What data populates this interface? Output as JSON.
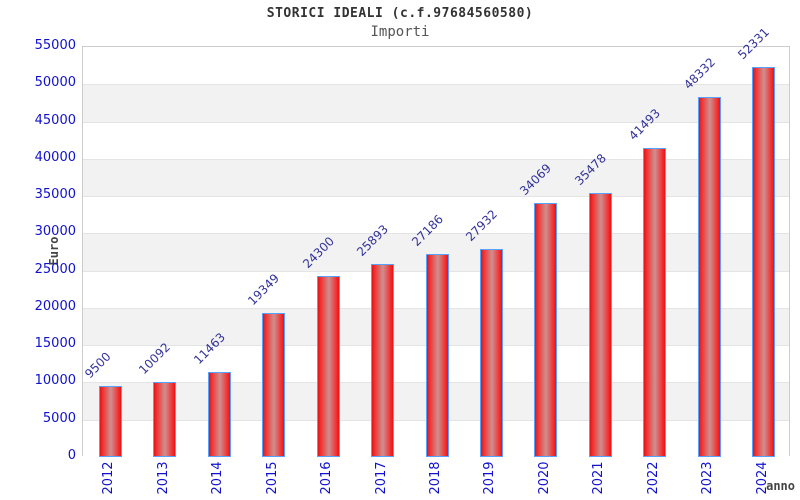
{
  "chart_data": {
    "type": "bar",
    "title": "STORICI IDEALI (c.f.97684560580)",
    "subtitle": "Importi",
    "xlabel": "anno",
    "ylabel": "Euro",
    "categories": [
      "2012",
      "2013",
      "2014",
      "2015",
      "2016",
      "2017",
      "2018",
      "2019",
      "2020",
      "2021",
      "2022",
      "2023",
      "2024"
    ],
    "values": [
      9500,
      10092,
      11463,
      19349,
      24300,
      25893,
      27186,
      27932,
      34069,
      35478,
      41493,
      48332,
      52331
    ],
    "value_labels": [
      "9500",
      "10092",
      "11463",
      "19349",
      "24300",
      "25893",
      "27186",
      "27932",
      "34069",
      "35478",
      "41493",
      "48332",
      "52331"
    ],
    "ylim": [
      0,
      55000
    ],
    "ytick_step": 5000,
    "ytick_labels": [
      "0",
      "5000",
      "10000",
      "15000",
      "20000",
      "25000",
      "30000",
      "35000",
      "40000",
      "45000",
      "50000",
      "55000"
    ],
    "grid": "horizontal gridlines every 5000 with alternating white/gray bands",
    "legend": "none",
    "colors": {
      "bar_fill_edge": "#e81313",
      "bar_fill_mid": "#f03434",
      "bar_fill_center": "#cf8f8f",
      "bar_border": "#57a2ff",
      "tick_label": "#1111cc",
      "value_label": "#333399",
      "title": "#333333",
      "subtitle": "#555555",
      "axis_title": "#444444",
      "band_alt": "#f2f2f2",
      "band_main": "#ffffff",
      "gridline": "#e4e4e4",
      "plot_border": "#cccccc",
      "background": "#ffffff"
    }
  }
}
